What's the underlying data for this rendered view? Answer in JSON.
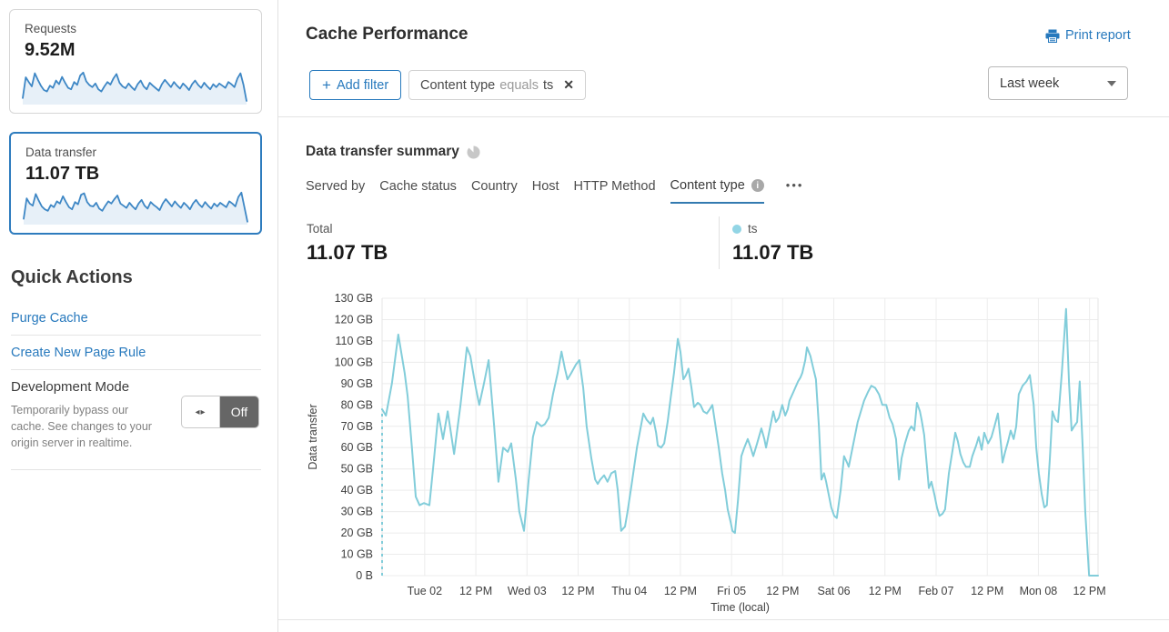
{
  "colors": {
    "accent": "#2779bd",
    "selected_card_border": "#2e7cbe",
    "spark_line": "#3e87c5",
    "spark_fill": "#e7f0f8",
    "chart_line": "#82cdda",
    "legend_dot": "#92d5e5",
    "grid_line": "#ececec",
    "toggle_off_bg": "#666666"
  },
  "glyphs": {
    "plus": "+",
    "close": "✕",
    "toggle_arrows": "◂▸",
    "more_dots": "•••",
    "info": "i"
  },
  "sidebar": {
    "cards": [
      {
        "label": "Requests",
        "value": "9.52M",
        "spark": [
          18,
          75,
          62,
          50,
          86,
          68,
          52,
          40,
          36,
          52,
          46,
          66,
          56,
          76,
          60,
          46,
          42,
          62,
          54,
          80,
          88,
          64,
          54,
          48,
          58,
          42,
          36,
          50,
          62,
          55,
          72,
          84,
          60,
          50,
          45,
          58,
          48,
          40,
          56,
          66,
          50,
          42,
          60,
          52,
          45,
          38,
          56,
          68,
          58,
          48,
          62,
          52,
          44,
          58,
          50,
          40,
          56,
          66,
          54,
          46,
          60,
          50,
          42,
          56,
          48,
          58,
          52,
          46,
          62,
          56,
          48,
          72,
          86,
          54,
          10
        ]
      },
      {
        "label": "Data transfer",
        "value": "11.07 TB",
        "selected": true,
        "spark": [
          16,
          72,
          58,
          52,
          84,
          66,
          50,
          42,
          38,
          54,
          48,
          64,
          58,
          78,
          62,
          48,
          42,
          62,
          56,
          82,
          86,
          62,
          52,
          50,
          60,
          44,
          38,
          52,
          64,
          58,
          70,
          80,
          58,
          52,
          46,
          60,
          50,
          42,
          58,
          68,
          52,
          44,
          62,
          54,
          48,
          40,
          58,
          70,
          60,
          50,
          64,
          54,
          46,
          60,
          52,
          42,
          58,
          68,
          56,
          48,
          62,
          52,
          44,
          58,
          50,
          60,
          54,
          48,
          64,
          58,
          50,
          76,
          88,
          48,
          8
        ]
      }
    ],
    "quick_actions_title": "Quick Actions",
    "links": [
      {
        "label": "Purge Cache"
      },
      {
        "label": "Create New Page Rule"
      }
    ],
    "dev_mode": {
      "title": "Development Mode",
      "description": "Temporarily bypass our cache. See changes to your origin server in realtime.",
      "toggle_label": "Off"
    }
  },
  "header": {
    "title": "Cache Performance",
    "print_label": "Print report"
  },
  "filters": {
    "add_filter_label": "Add filter",
    "chip": {
      "field": "Content type",
      "operator": "equals",
      "value": "ts"
    },
    "time_range": "Last week"
  },
  "summary": {
    "title": "Data transfer summary",
    "tabs": [
      {
        "label": "Served by"
      },
      {
        "label": "Cache status"
      },
      {
        "label": "Country"
      },
      {
        "label": "Host"
      },
      {
        "label": "HTTP Method"
      },
      {
        "label": "Content type",
        "active": true
      }
    ],
    "total_label": "Total",
    "total_value": "11.07 TB",
    "legend": {
      "name": "ts",
      "value": "11.07 TB"
    }
  },
  "chart_data": {
    "type": "line",
    "title": "Data transfer summary",
    "xlabel": "Time (local)",
    "ylabel": "Data transfer",
    "x_unit": "hours_since_start",
    "x_range": [
      0,
      168
    ],
    "ylim": [
      0,
      130
    ],
    "y_unit": "GB",
    "y_tick_step_gb": 10,
    "y_tick_labels": [
      "0 B",
      "10 GB",
      "20 GB",
      "30 GB",
      "40 GB",
      "50 GB",
      "60 GB",
      "70 GB",
      "80 GB",
      "90 GB",
      "100 GB",
      "110 GB",
      "120 GB",
      "130 GB"
    ],
    "x_ticks": [
      {
        "hour": 10,
        "label": "Tue 02"
      },
      {
        "hour": 22,
        "label": "12 PM"
      },
      {
        "hour": 34,
        "label": "Wed 03"
      },
      {
        "hour": 46,
        "label": "12 PM"
      },
      {
        "hour": 58,
        "label": "Thu 04"
      },
      {
        "hour": 70,
        "label": "12 PM"
      },
      {
        "hour": 82,
        "label": "Fri 05"
      },
      {
        "hour": 94,
        "label": "12 PM"
      },
      {
        "hour": 106,
        "label": "Sat 06"
      },
      {
        "hour": 118,
        "label": "12 PM"
      },
      {
        "hour": 130,
        "label": "Feb 07"
      },
      {
        "hour": 142,
        "label": "12 PM"
      },
      {
        "hour": 154,
        "label": "Mon 08"
      },
      {
        "hour": 166,
        "label": "12 PM"
      }
    ],
    "grid": true,
    "series": [
      {
        "name": "ts",
        "color": "#82cdda",
        "unit": "GB",
        "leading_dashed_drop_to_zero": true,
        "points": [
          [
            0,
            78
          ],
          [
            0.9,
            75
          ],
          [
            2.3,
            90
          ],
          [
            3.8,
            113
          ],
          [
            5.3,
            95
          ],
          [
            6,
            84
          ],
          [
            7,
            60
          ],
          [
            7.9,
            37
          ],
          [
            8.8,
            33
          ],
          [
            9.8,
            34
          ],
          [
            11.1,
            33
          ],
          [
            12.2,
            55
          ],
          [
            13.2,
            76
          ],
          [
            14.3,
            64
          ],
          [
            15.4,
            77
          ],
          [
            16.9,
            57
          ],
          [
            18.4,
            80
          ],
          [
            19.9,
            107
          ],
          [
            20.7,
            103
          ],
          [
            21.3,
            96
          ],
          [
            22,
            88
          ],
          [
            22.8,
            80
          ],
          [
            23.9,
            90
          ],
          [
            25,
            101
          ],
          [
            26.3,
            70
          ],
          [
            27.3,
            44
          ],
          [
            28.4,
            60
          ],
          [
            29.5,
            58
          ],
          [
            30.3,
            62
          ],
          [
            31.4,
            45
          ],
          [
            32.2,
            30
          ],
          [
            33.3,
            21
          ],
          [
            34.4,
            45
          ],
          [
            35.4,
            65
          ],
          [
            36.3,
            72
          ],
          [
            37.4,
            70
          ],
          [
            38.2,
            71
          ],
          [
            39.1,
            74
          ],
          [
            40.1,
            85
          ],
          [
            41.2,
            95
          ],
          [
            42.1,
            105
          ],
          [
            42.9,
            97
          ],
          [
            43.5,
            92
          ],
          [
            44.4,
            95
          ],
          [
            45.5,
            99
          ],
          [
            46.3,
            101
          ],
          [
            47.2,
            88
          ],
          [
            48,
            70
          ],
          [
            49.1,
            55
          ],
          [
            50,
            45
          ],
          [
            50.6,
            43
          ],
          [
            51.2,
            45
          ],
          [
            52.1,
            47
          ],
          [
            52.9,
            44
          ],
          [
            53.8,
            48
          ],
          [
            54.7,
            49
          ],
          [
            55.3,
            40
          ],
          [
            56.1,
            21
          ],
          [
            57,
            23
          ],
          [
            57.6,
            30
          ],
          [
            58.5,
            42
          ],
          [
            59.8,
            60
          ],
          [
            61.3,
            76
          ],
          [
            62.1,
            73
          ],
          [
            63,
            71
          ],
          [
            63.6,
            74
          ],
          [
            64.3,
            67
          ],
          [
            64.7,
            61
          ],
          [
            65.5,
            60
          ],
          [
            66.2,
            62
          ],
          [
            67,
            72
          ],
          [
            67.7,
            83
          ],
          [
            68.5,
            95
          ],
          [
            69.4,
            111
          ],
          [
            70,
            105
          ],
          [
            70.7,
            92
          ],
          [
            71.3,
            94
          ],
          [
            71.9,
            97
          ],
          [
            72.6,
            88
          ],
          [
            73.2,
            79
          ],
          [
            74.1,
            81
          ],
          [
            74.7,
            80
          ],
          [
            75.4,
            77
          ],
          [
            76.2,
            76
          ],
          [
            76.9,
            78
          ],
          [
            77.5,
            80
          ],
          [
            78.1,
            72
          ],
          [
            79,
            60
          ],
          [
            79.8,
            48
          ],
          [
            80.5,
            40
          ],
          [
            81.1,
            31
          ],
          [
            81.8,
            25
          ],
          [
            82.2,
            21
          ],
          [
            82.8,
            20
          ],
          [
            83.5,
            35
          ],
          [
            84.3,
            56
          ],
          [
            85,
            60
          ],
          [
            85.8,
            64
          ],
          [
            86.5,
            60
          ],
          [
            87.1,
            56
          ],
          [
            88,
            62
          ],
          [
            89,
            69
          ],
          [
            89.7,
            64
          ],
          [
            90.1,
            60
          ],
          [
            90.9,
            68
          ],
          [
            91.8,
            77
          ],
          [
            92.4,
            72
          ],
          [
            93.1,
            74
          ],
          [
            93.9,
            80
          ],
          [
            94.6,
            75
          ],
          [
            95.2,
            78
          ],
          [
            95.6,
            82
          ],
          [
            96.5,
            86
          ],
          [
            97.6,
            91
          ],
          [
            98.2,
            93
          ],
          [
            98.6,
            95
          ],
          [
            99.3,
            101
          ],
          [
            99.7,
            107
          ],
          [
            100.5,
            103
          ],
          [
            101.2,
            97
          ],
          [
            101.8,
            92
          ],
          [
            102.5,
            70
          ],
          [
            103.1,
            45
          ],
          [
            103.7,
            48
          ],
          [
            104.2,
            44
          ],
          [
            104.8,
            38
          ],
          [
            105.4,
            32
          ],
          [
            106.1,
            28
          ],
          [
            106.7,
            27
          ],
          [
            107.6,
            40
          ],
          [
            108.4,
            56
          ],
          [
            109.1,
            53
          ],
          [
            109.5,
            51
          ],
          [
            110.4,
            60
          ],
          [
            111,
            66
          ],
          [
            111.6,
            72
          ],
          [
            112.5,
            78
          ],
          [
            113.1,
            82
          ],
          [
            114,
            86
          ],
          [
            114.8,
            89
          ],
          [
            115.7,
            88
          ],
          [
            116.6,
            85
          ],
          [
            117.4,
            80
          ],
          [
            118.3,
            80
          ],
          [
            119.1,
            74
          ],
          [
            119.8,
            71
          ],
          [
            120.6,
            64
          ],
          [
            121.3,
            45
          ],
          [
            121.9,
            55
          ],
          [
            122.7,
            62
          ],
          [
            123.6,
            68
          ],
          [
            124.2,
            70
          ],
          [
            124.9,
            68
          ],
          [
            125.5,
            81
          ],
          [
            126.2,
            77
          ],
          [
            126.6,
            73
          ],
          [
            127.2,
            66
          ],
          [
            127.9,
            50
          ],
          [
            128.3,
            41
          ],
          [
            128.9,
            44
          ],
          [
            129.6,
            38
          ],
          [
            130.2,
            32
          ],
          [
            130.8,
            28
          ],
          [
            131.5,
            29
          ],
          [
            132.1,
            31
          ],
          [
            133,
            48
          ],
          [
            133.8,
            58
          ],
          [
            134.5,
            67
          ],
          [
            135.1,
            63
          ],
          [
            135.7,
            57
          ],
          [
            136.4,
            53
          ],
          [
            137,
            51
          ],
          [
            137.9,
            51
          ],
          [
            138.5,
            56
          ],
          [
            139.4,
            61
          ],
          [
            140,
            65
          ],
          [
            140.7,
            59
          ],
          [
            141.3,
            67
          ],
          [
            142.2,
            62
          ],
          [
            143,
            65
          ],
          [
            143.7,
            70
          ],
          [
            144.5,
            76
          ],
          [
            145.2,
            62
          ],
          [
            145.6,
            53
          ],
          [
            146.2,
            58
          ],
          [
            146.9,
            63
          ],
          [
            147.5,
            68
          ],
          [
            148.2,
            64
          ],
          [
            148.8,
            70
          ],
          [
            149.4,
            85
          ],
          [
            150.3,
            89
          ],
          [
            151.2,
            91
          ],
          [
            152,
            94
          ],
          [
            152.9,
            80
          ],
          [
            153.5,
            60
          ],
          [
            154.1,
            48
          ],
          [
            154.8,
            38
          ],
          [
            155.4,
            32
          ],
          [
            156,
            33
          ],
          [
            156.7,
            55
          ],
          [
            157.3,
            77
          ],
          [
            158,
            73
          ],
          [
            158.6,
            72
          ],
          [
            159.5,
            95
          ],
          [
            160.5,
            125
          ],
          [
            161.2,
            90
          ],
          [
            161.8,
            68
          ],
          [
            162.4,
            70
          ],
          [
            163.1,
            72
          ],
          [
            163.7,
            91
          ],
          [
            164.4,
            60
          ],
          [
            165,
            30
          ],
          [
            165.9,
            0
          ],
          [
            166.5,
            0
          ],
          [
            167.4,
            0
          ],
          [
            168,
            0
          ]
        ]
      }
    ]
  }
}
